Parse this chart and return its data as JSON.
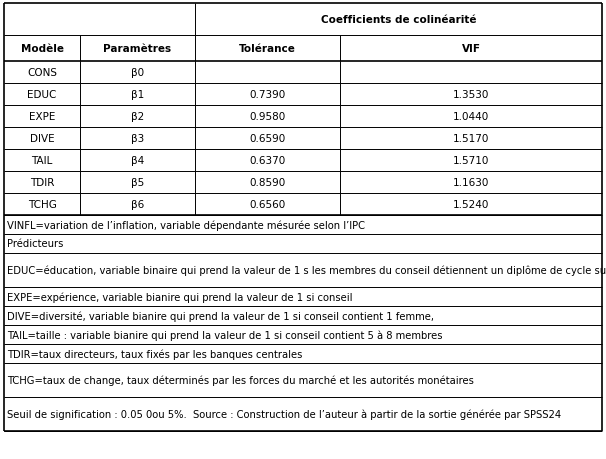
{
  "header_row1_text": "Coefficients de colinéarité",
  "header_row2": [
    "Modèle",
    "Paramètres",
    "Tolérance",
    "VIF"
  ],
  "data_rows": [
    [
      "CONS",
      "β0",
      "",
      ""
    ],
    [
      "EDUC",
      "β1",
      "0.7390",
      "1.3530"
    ],
    [
      "EXPE",
      "β2",
      "0.9580",
      "1.0440"
    ],
    [
      "DIVE",
      "β3",
      "0.6590",
      "1.5170"
    ],
    [
      "TAIL",
      "β4",
      "0.6370",
      "1.5710"
    ],
    [
      "TDIR",
      "β5",
      "0.8590",
      "1.1630"
    ],
    [
      "TCHG",
      "β6",
      "0.6560",
      "1.5240"
    ]
  ],
  "note_rows": [
    {
      "text": "VINFL=variation de l’inflation, variable dépendante mésurée selon l’IPC",
      "lines": 1
    },
    {
      "text": "Prédicteurs",
      "lines": 1
    },
    {
      "text": "EDUC=éducation, variable binaire qui prend la valeur de 1 s les membres du conseil détiennent un diplôme de cycle supérieur",
      "lines": 2
    },
    {
      "text": "EXPE=expérience, variable bianire qui prend la valeur de 1 si conseil",
      "lines": 1
    },
    {
      "text": "DIVE=diversité, variable bianire qui prend la valeur de 1 si conseil contient 1 femme,",
      "lines": 1
    },
    {
      "text": "TAIL=taille : variable bianire qui prend la valeur de 1 si conseil contient 5 à 8 membres",
      "lines": 1
    },
    {
      "text": "TDIR=taux directeurs, taux fixés par les banques centrales",
      "lines": 1
    },
    {
      "text": "TCHG=taux de change, taux déterminés par les forces du marché et les autorités monétaires",
      "lines": 2
    },
    {
      "text": "Seuil de signification : 0.05 0ou 5%.  Source : Construction de l’auteur à partir de la sortie générée par SPSS24",
      "lines": 2
    }
  ],
  "background_color": "#ffffff",
  "border_color": "#000000",
  "text_color": "#000000",
  "header_fontsize": 7.5,
  "data_fontsize": 7.5,
  "note_fontsize": 7.2
}
